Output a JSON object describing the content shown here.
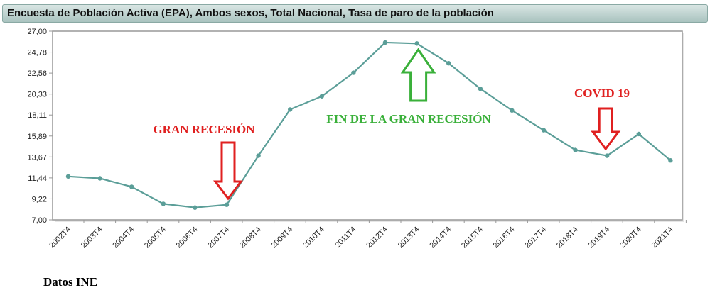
{
  "chart_data": {
    "type": "line",
    "title": "Encuesta de Población Activa (EPA), Ambos sexos, Total Nacional, Tasa de paro de la población",
    "xlabel": "",
    "ylabel": "",
    "x": [
      "2002T4",
      "2003T4",
      "2004T4",
      "2005T4",
      "2006T4",
      "2007T4",
      "2008T4",
      "2009T4",
      "2010T4",
      "2011T4",
      "2012T4",
      "2013T4",
      "2014T4",
      "2015T4",
      "2016T4",
      "2017T4",
      "2018T4",
      "2019T4",
      "2020T4",
      "2021T4"
    ],
    "series": [
      {
        "values": [
          11.6,
          11.4,
          10.5,
          8.7,
          8.3,
          8.6,
          13.8,
          18.7,
          20.1,
          22.6,
          25.8,
          25.7,
          23.6,
          20.9,
          18.6,
          16.5,
          14.4,
          13.8,
          16.1,
          13.3
        ]
      }
    ],
    "y_ticks": [
      "27,00",
      "24,78",
      "22,56",
      "20,33",
      "18,11",
      "15,89",
      "13,67",
      "11,44",
      "9,22",
      "7,00"
    ],
    "ylim": [
      7.0,
      27.0
    ],
    "grid": true,
    "line_color": "#5b9e98",
    "annotations": [
      {
        "text": "GRAN RECESIÓN",
        "color": "#e02020",
        "arrow": "down",
        "target": "2007T4"
      },
      {
        "text": "FIN DE LA GRAN RECESIÓN",
        "color": "#3ab03a",
        "arrow": "up",
        "target": "2013T4"
      },
      {
        "text": "COVID 19",
        "color": "#e02020",
        "arrow": "down",
        "target": "2019T4"
      }
    ]
  },
  "source_label": "Datos INE"
}
